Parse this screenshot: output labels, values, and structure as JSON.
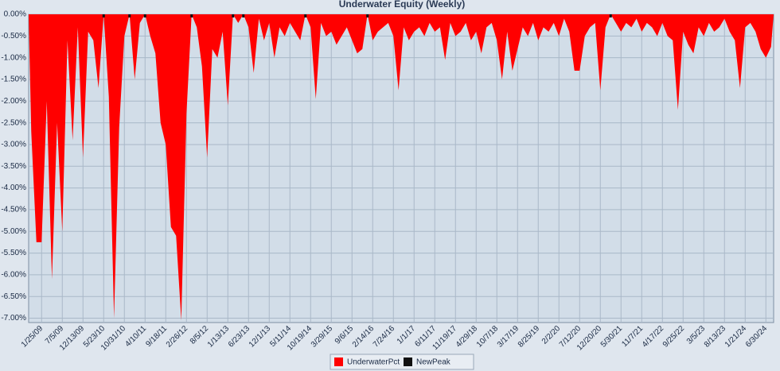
{
  "chart_data": {
    "type": "area",
    "title": "Underwater Equity (Weekly)",
    "categories": [
      null,
      null,
      "1/25/09",
      null,
      null,
      null,
      "7/5/09",
      null,
      null,
      null,
      "12/13/09",
      null,
      null,
      null,
      "5/23/10",
      null,
      null,
      null,
      "10/31/10",
      null,
      null,
      null,
      "4/10/11",
      null,
      null,
      null,
      "9/18/11",
      null,
      null,
      null,
      "2/26/12",
      null,
      null,
      null,
      "8/5/12",
      null,
      null,
      null,
      "1/13/13",
      null,
      null,
      null,
      "6/23/13",
      null,
      null,
      null,
      "12/1/13",
      null,
      null,
      null,
      "5/11/14",
      null,
      null,
      null,
      "10/19/14",
      null,
      null,
      null,
      "3/29/15",
      null,
      null,
      null,
      "9/6/15",
      null,
      null,
      null,
      "2/14/16",
      null,
      null,
      null,
      "7/24/16",
      null,
      null,
      null,
      "1/1/17",
      null,
      null,
      null,
      "6/11/17",
      null,
      null,
      null,
      "11/19/17",
      null,
      null,
      null,
      "4/29/18",
      null,
      null,
      null,
      "10/7/18",
      null,
      null,
      null,
      "3/17/19",
      null,
      null,
      null,
      "8/25/19",
      null,
      null,
      null,
      "2/2/20",
      null,
      null,
      null,
      "7/12/20",
      null,
      null,
      null,
      "12/20/20",
      null,
      null,
      null,
      "5/30/21",
      null,
      null,
      null,
      "11/7/21",
      null,
      null,
      null,
      "4/17/22",
      null,
      null,
      null,
      "9/25/22",
      null,
      null,
      null,
      "3/5/23",
      null,
      null,
      null,
      "8/13/23",
      null,
      null,
      null,
      "1/21/24",
      null,
      null,
      null,
      "6/30/24",
      null
    ],
    "series": [
      {
        "name": "UnderwaterPct",
        "color": "#ff0000",
        "values": [
          -2.7,
          -5.25,
          -5.25,
          -2.0,
          -6.1,
          -2.5,
          -5.0,
          -0.6,
          -2.9,
          -0.3,
          -3.3,
          -0.4,
          -0.6,
          -1.7,
          0,
          -1.9,
          -7.0,
          -2.6,
          -0.5,
          0,
          -1.5,
          -0.2,
          0,
          -0.5,
          -0.9,
          -2.5,
          -3.0,
          -4.9,
          -5.1,
          -7.05,
          -2.3,
          0,
          -0.3,
          -1.2,
          -3.3,
          -0.8,
          -1.0,
          -0.4,
          -2.1,
          0,
          -0.2,
          0,
          -0.3,
          -1.35,
          -0.1,
          -0.6,
          -0.2,
          -1.0,
          -0.3,
          -0.5,
          -0.2,
          -0.4,
          -0.6,
          0,
          -0.3,
          -1.95,
          -0.2,
          -0.5,
          -0.4,
          -0.7,
          -0.5,
          -0.3,
          -0.6,
          -0.9,
          -0.8,
          0,
          -0.6,
          -0.4,
          -0.3,
          -0.2,
          -0.5,
          -1.75,
          -0.3,
          -0.6,
          -0.4,
          -0.3,
          -0.5,
          -0.2,
          -0.4,
          -0.3,
          -1.05,
          -0.2,
          -0.5,
          -0.4,
          -0.2,
          -0.6,
          -0.4,
          -0.9,
          -0.3,
          -0.2,
          -0.6,
          -1.5,
          -0.4,
          -1.3,
          -0.8,
          -0.3,
          -0.5,
          -0.2,
          -0.6,
          -0.3,
          -0.4,
          -0.2,
          -0.5,
          -0.1,
          -0.4,
          -1.3,
          -1.3,
          -0.5,
          -0.3,
          -0.2,
          -1.75,
          -0.3,
          0,
          -0.2,
          -0.4,
          -0.2,
          -0.3,
          -0.1,
          -0.4,
          -0.2,
          -0.3,
          -0.5,
          -0.2,
          -0.5,
          -0.6,
          -2.2,
          -0.4,
          -0.7,
          -0.9,
          -0.3,
          -0.5,
          -0.2,
          -0.4,
          -0.3,
          -0.1,
          -0.4,
          -0.6,
          -1.7,
          -0.3,
          -0.2,
          -0.4,
          -0.8,
          -1.0,
          -0.75
        ]
      },
      {
        "name": "NewPeak",
        "color": "#111111",
        "values": [
          null,
          null,
          null,
          null,
          null,
          null,
          null,
          null,
          null,
          null,
          null,
          null,
          null,
          null,
          0,
          null,
          null,
          null,
          null,
          0,
          null,
          null,
          0,
          null,
          null,
          null,
          null,
          null,
          null,
          null,
          null,
          0,
          null,
          null,
          null,
          null,
          null,
          null,
          null,
          0,
          null,
          0,
          null,
          null,
          null,
          null,
          null,
          null,
          null,
          null,
          null,
          null,
          null,
          0,
          null,
          null,
          null,
          null,
          null,
          null,
          null,
          null,
          null,
          null,
          null,
          0,
          null,
          null,
          null,
          null,
          null,
          null,
          null,
          null,
          null,
          null,
          null,
          null,
          null,
          null,
          null,
          null,
          null,
          null,
          null,
          null,
          null,
          null,
          null,
          null,
          null,
          null,
          null,
          null,
          null,
          null,
          null,
          null,
          null,
          null,
          null,
          null,
          null,
          null,
          null,
          null,
          null,
          null,
          null,
          null,
          null,
          null,
          0,
          null,
          null,
          null,
          null,
          null,
          null,
          null,
          null,
          null,
          null,
          null,
          null,
          null,
          null,
          null,
          null,
          null,
          null,
          null,
          null,
          null,
          null,
          null,
          null,
          null,
          null,
          null,
          null,
          null,
          null,
          null
        ]
      }
    ],
    "ylim": [
      -7.1,
      0
    ],
    "yticks": [
      {
        "value": 0,
        "label": "0.00%"
      },
      {
        "value": -0.5,
        "label": "-0.50%"
      },
      {
        "value": -1,
        "label": "-1.00%"
      },
      {
        "value": -1.5,
        "label": "-1.50%"
      },
      {
        "value": -2,
        "label": "-2.00%"
      },
      {
        "value": -2.5,
        "label": "-2.50%"
      },
      {
        "value": -3,
        "label": "-3.00%"
      },
      {
        "value": -3.5,
        "label": "-3.50%"
      },
      {
        "value": -4,
        "label": "-4.00%"
      },
      {
        "value": -4.5,
        "label": "-4.50%"
      },
      {
        "value": -5,
        "label": "-5.00%"
      },
      {
        "value": -5.5,
        "label": "-5.50%"
      },
      {
        "value": -6,
        "label": "-6.00%"
      },
      {
        "value": -6.5,
        "label": "-6.50%"
      },
      {
        "value": -7,
        "label": "-7.00%"
      }
    ],
    "grid": true
  }
}
